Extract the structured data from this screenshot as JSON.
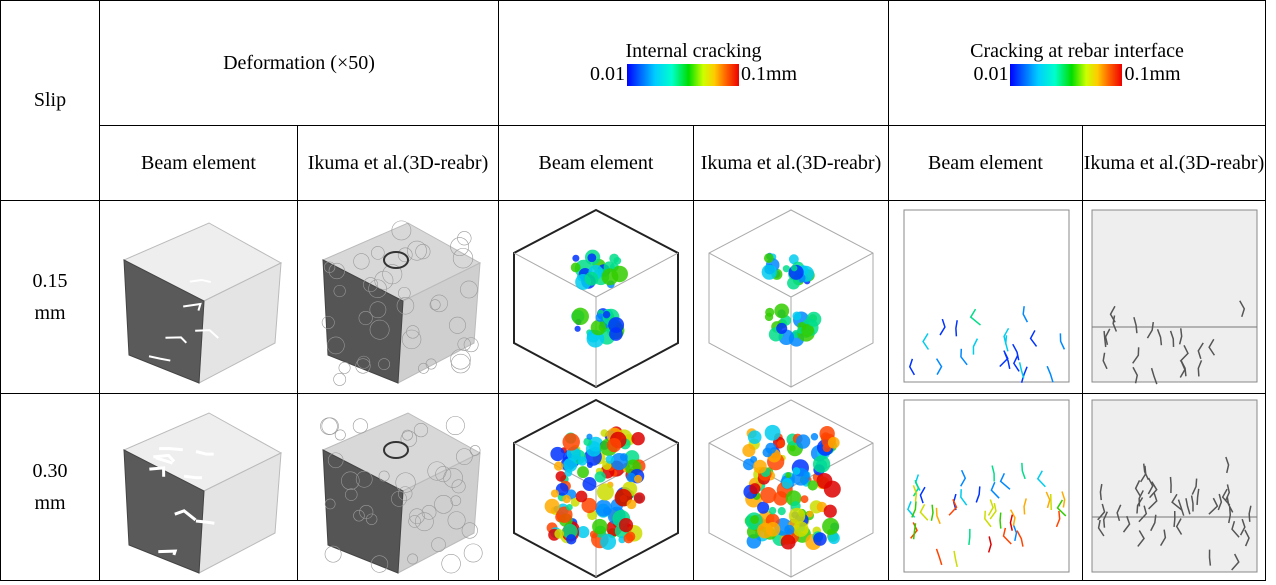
{
  "table": {
    "header": {
      "slip": "Slip",
      "groups": [
        {
          "title": "Deformation (×50)"
        },
        {
          "title": "Internal cracking",
          "scale_min": "0.01",
          "scale_max": "0.1mm"
        },
        {
          "title": "Cracking at rebar interface",
          "scale_min": "0.01",
          "scale_max": "0.1mm"
        }
      ],
      "subheaders": [
        "Beam element",
        "Ikuma et al.(3D-reabr)",
        "Beam element",
        "Ikuma et al.(3D-reabr)",
        "Beam element",
        "Ikuma et al.(3D-reabr)"
      ]
    },
    "rows": [
      {
        "slip": "0.15 mm"
      },
      {
        "slip": "0.30 mm"
      }
    ]
  }
}
